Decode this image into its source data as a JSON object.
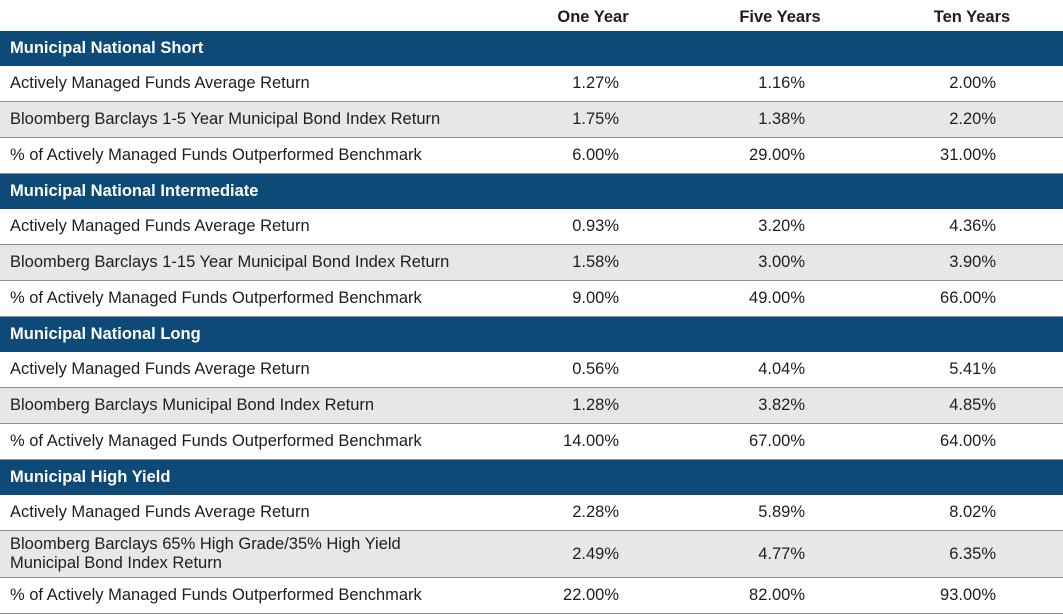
{
  "columns": [
    "One Year",
    "Five Years",
    "Ten Years"
  ],
  "sections": [
    {
      "title": "Municipal National Short",
      "rows": [
        {
          "label": "Actively Managed Funds Average Return",
          "values": [
            "1.27%",
            "1.16%",
            "2.00%"
          ]
        },
        {
          "label": "Bloomberg Barclays 1-5 Year Municipal Bond Index Return",
          "values": [
            "1.75%",
            "1.38%",
            "2.20%"
          ]
        },
        {
          "label": "% of Actively Managed Funds Outperformed Benchmark",
          "values": [
            "6.00%",
            "29.00%",
            "31.00%"
          ]
        }
      ]
    },
    {
      "title": "Municipal National Intermediate",
      "rows": [
        {
          "label": "Actively Managed Funds Average Return",
          "values": [
            "0.93%",
            "3.20%",
            "4.36%"
          ]
        },
        {
          "label": "Bloomberg Barclays 1-15 Year Municipal Bond Index Return",
          "values": [
            "1.58%",
            "3.00%",
            "3.90%"
          ]
        },
        {
          "label": "% of Actively Managed Funds Outperformed Benchmark",
          "values": [
            "9.00%",
            "49.00%",
            "66.00%"
          ]
        }
      ]
    },
    {
      "title": "Municipal National Long",
      "rows": [
        {
          "label": "Actively Managed Funds Average Return",
          "values": [
            "0.56%",
            "4.04%",
            "5.41%"
          ]
        },
        {
          "label": "Bloomberg Barclays Municipal Bond Index Return",
          "values": [
            "1.28%",
            "3.82%",
            "4.85%"
          ]
        },
        {
          "label": "% of Actively Managed Funds Outperformed Benchmark",
          "values": [
            "14.00%",
            "67.00%",
            "64.00%"
          ]
        }
      ]
    },
    {
      "title": "Municipal High Yield",
      "rows": [
        {
          "label": "Actively Managed Funds Average Return",
          "values": [
            "2.28%",
            "5.89%",
            "8.02%"
          ]
        },
        {
          "label": "Bloomberg Barclays 65% High Grade/35% High Yield Municipal Bond Index Return",
          "values": [
            "2.49%",
            "4.77%",
            "6.35%"
          ]
        },
        {
          "label": "% of Actively Managed Funds Outperformed Benchmark",
          "values": [
            "22.00%",
            "82.00%",
            "93.00%"
          ]
        }
      ]
    }
  ]
}
